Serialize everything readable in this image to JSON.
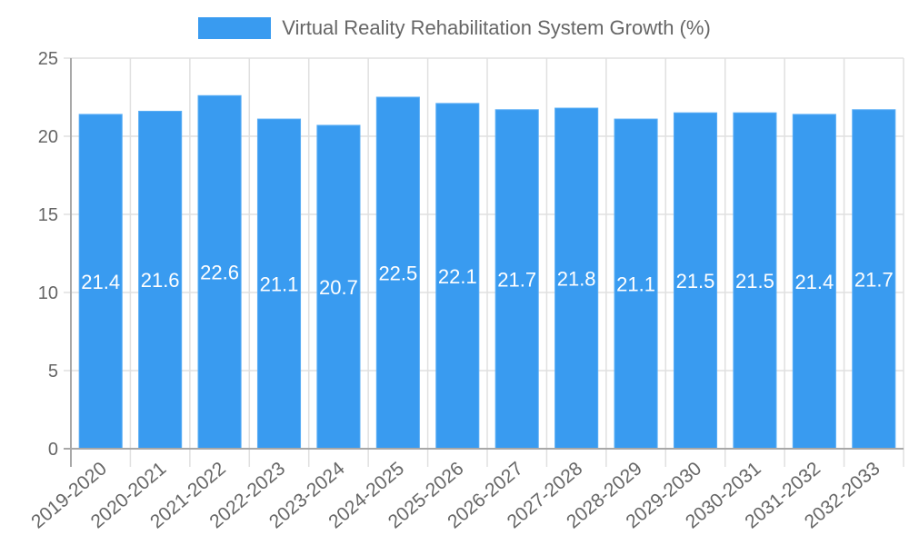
{
  "legend": {
    "label": "Virtual Reality Rehabilitation System Growth (%)",
    "color": "#399bf0"
  },
  "colors": {
    "bar": "#399bf0",
    "bar_border": "#5aaef5",
    "grid": "#e0e0e0",
    "axis": "#a8a8a8",
    "tick_text": "#666666",
    "bar_label": "#ffffff"
  },
  "chart_data": {
    "type": "bar",
    "title": "",
    "xlabel": "",
    "ylabel": "",
    "legend_position": "top",
    "grid": true,
    "ylim": [
      0,
      25
    ],
    "yticks": [
      0,
      5,
      10,
      15,
      20,
      25
    ],
    "categories": [
      "2019-2020",
      "2020-2021",
      "2021-2022",
      "2022-2023",
      "2023-2024",
      "2024-2025",
      "2025-2026",
      "2026-2027",
      "2027-2028",
      "2028-2029",
      "2029-2030",
      "2030-2031",
      "2031-2032",
      "2032-2033"
    ],
    "series": [
      {
        "name": "Virtual Reality Rehabilitation System Growth (%)",
        "values": [
          21.4,
          21.6,
          22.6,
          21.1,
          20.7,
          22.5,
          22.1,
          21.7,
          21.8,
          21.1,
          21.5,
          21.5,
          21.4,
          21.7
        ]
      }
    ]
  }
}
